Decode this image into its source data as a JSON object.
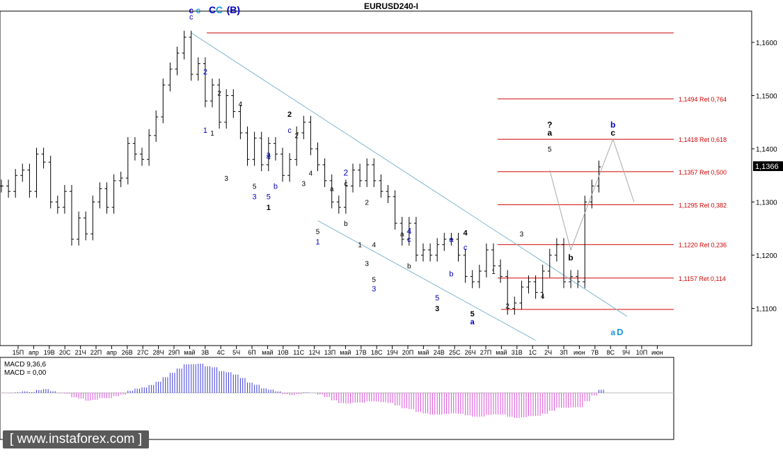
{
  "chart_data": {
    "type": "candlestick",
    "title": "EURUSD240-I",
    "current_price": "1,1366",
    "price_ticks": [
      "1,1600",
      "1,1500",
      "1,1400",
      "1,1300",
      "1,1200",
      "1,1100"
    ],
    "time_ticks": [
      "15П",
      "апр",
      "19В",
      "20С",
      "21Ч",
      "22П",
      "апр",
      "26В",
      "27С",
      "28Ч",
      "29П",
      "май",
      "3В",
      "4С",
      "5Ч",
      "6П",
      "май",
      "10В",
      "11С",
      "12Ч",
      "13П",
      "май",
      "17В",
      "18С",
      "19Ч",
      "20П",
      "май",
      "24В",
      "25С",
      "26Ч",
      "27П",
      "май",
      "31В",
      "1С",
      "2Ч",
      "3П",
      "июн",
      "7В",
      "8С",
      "9Ч",
      "10П",
      "июн"
    ],
    "fib_levels": [
      {
        "price": 1.1618,
        "label": ""
      },
      {
        "price": 1.1494,
        "label": "1,1494 Ret 0,764"
      },
      {
        "price": 1.1418,
        "label": "1,1418 Ret 0,618"
      },
      {
        "price": 1.1357,
        "label": "1,1357 Ret 0,500"
      },
      {
        "price": 1.1295,
        "label": "1,1295 Ret 0,382"
      },
      {
        "price": 1.122,
        "label": "1,1220 Ret 0,236"
      },
      {
        "price": 1.1157,
        "label": "1,1157 Ret 0,114"
      },
      {
        "price": 1.1098,
        "label": ""
      }
    ],
    "price_path": [
      1.133,
      1.132,
      1.135,
      1.136,
      1.132,
      1.139,
      1.1375,
      1.13,
      1.129,
      1.132,
      1.123,
      1.127,
      1.124,
      1.13,
      1.1325,
      1.129,
      1.134,
      1.1345,
      1.141,
      1.139,
      1.138,
      1.1425,
      1.146,
      1.152,
      1.155,
      1.158,
      1.161,
      1.154,
      1.156,
      1.149,
      1.152,
      1.145,
      1.15,
      1.147,
      1.143,
      1.138,
      1.142,
      1.137,
      1.141,
      1.139,
      1.135,
      1.138,
      1.143,
      1.145,
      1.14,
      1.137,
      1.134,
      1.13,
      1.129,
      1.133,
      1.136,
      1.134,
      1.137,
      1.134,
      1.132,
      1.131,
      1.126,
      1.123,
      1.126,
      1.12,
      1.121,
      1.12,
      1.122,
      1.123,
      1.123,
      1.12,
      1.116,
      1.115,
      1.117,
      1.121,
      1.118,
      1.116,
      1.11,
      1.111,
      1.114,
      1.115,
      1.113,
      1.117,
      1.12,
      1.122,
      1.115,
      1.116,
      1.115,
      1.13,
      1.133,
      1.1366
    ],
    "annotations": [
      {
        "text": "c",
        "color": "#0000c0",
        "price": 1.1643,
        "bar": 27,
        "size": 11,
        "bold": false
      },
      {
        "text": "c",
        "color": "#0000c0",
        "price": 1.1655,
        "bar": 27,
        "size": 12,
        "bold": true
      },
      {
        "text": "c",
        "color": "#1a9ad6",
        "price": 1.1655,
        "bar": 28,
        "size": 12,
        "bold": true
      },
      {
        "text": "C",
        "color": "#0000c0",
        "price": 1.1655,
        "bar": 30,
        "size": 14,
        "bold": true
      },
      {
        "text": "C",
        "color": "#1a9ad6",
        "price": 1.1655,
        "bar": 31,
        "size": 14,
        "bold": true
      },
      {
        "text": "(B)",
        "color": "#0000c0",
        "price": 1.1655,
        "bar": 33,
        "size": 14,
        "bold": true
      },
      {
        "text": "2",
        "color": "#0000c0",
        "price": 1.154,
        "bar": 29,
        "size": 11,
        "bold": false
      },
      {
        "text": "2",
        "color": "#000000",
        "price": 1.15,
        "bar": 31,
        "size": 10,
        "bold": false
      },
      {
        "text": "1",
        "color": "#0000c0",
        "price": 1.143,
        "bar": 29,
        "size": 11,
        "bold": false
      },
      {
        "text": "1",
        "color": "#000000",
        "price": 1.1425,
        "bar": 30,
        "size": 10,
        "bold": false
      },
      {
        "text": "4",
        "color": "#000000",
        "price": 1.148,
        "bar": 34,
        "size": 10,
        "bold": false
      },
      {
        "text": "3",
        "color": "#000000",
        "price": 1.134,
        "bar": 32,
        "size": 10,
        "bold": false
      },
      {
        "text": "4",
        "color": "#0000c0",
        "price": 1.138,
        "bar": 38,
        "size": 11,
        "bold": false
      },
      {
        "text": "5",
        "color": "#000000",
        "price": 1.1325,
        "bar": 36,
        "size": 10,
        "bold": false
      },
      {
        "text": "3",
        "color": "#0000c0",
        "price": 1.1305,
        "bar": 36,
        "size": 11,
        "bold": false
      },
      {
        "text": "5",
        "color": "#0000c0",
        "price": 1.1305,
        "bar": 38,
        "size": 11,
        "bold": false
      },
      {
        "text": "1",
        "color": "#000000",
        "price": 1.1285,
        "bar": 38,
        "size": 11,
        "bold": true
      },
      {
        "text": "2",
        "color": "#000000",
        "price": 1.146,
        "bar": 41,
        "size": 11,
        "bold": true
      },
      {
        "text": "c",
        "color": "#0000c0",
        "price": 1.143,
        "bar": 41,
        "size": 11,
        "bold": false
      },
      {
        "text": "2",
        "color": "#000000",
        "price": 1.142,
        "bar": 42,
        "size": 10,
        "bold": false
      },
      {
        "text": "a",
        "color": "#0000c0",
        "price": 1.1385,
        "bar": 38,
        "size": 11,
        "bold": false
      },
      {
        "text": "b",
        "color": "#0000c0",
        "price": 1.1325,
        "bar": 39,
        "size": 11,
        "bold": false
      },
      {
        "text": "3",
        "color": "#000000",
        "price": 1.133,
        "bar": 43,
        "size": 10,
        "bold": false
      },
      {
        "text": "4",
        "color": "#000000",
        "price": 1.135,
        "bar": 44,
        "size": 10,
        "bold": false
      },
      {
        "text": "5",
        "color": "#000000",
        "price": 1.124,
        "bar": 45,
        "size": 10,
        "bold": false
      },
      {
        "text": "1",
        "color": "#0000c0",
        "price": 1.122,
        "bar": 45,
        "size": 11,
        "bold": false
      },
      {
        "text": "2",
        "color": "#0000c0",
        "price": 1.135,
        "bar": 49,
        "size": 12,
        "bold": false
      },
      {
        "text": "c",
        "color": "#000000",
        "price": 1.133,
        "bar": 49,
        "size": 10,
        "bold": false
      },
      {
        "text": "a",
        "color": "#000000",
        "price": 1.132,
        "bar": 47,
        "size": 10,
        "bold": false
      },
      {
        "text": "b",
        "color": "#000000",
        "price": 1.1255,
        "bar": 49,
        "size": 10,
        "bold": false
      },
      {
        "text": "2",
        "color": "#000000",
        "price": 1.1295,
        "bar": 52,
        "size": 10,
        "bold": false
      },
      {
        "text": "1",
        "color": "#000000",
        "price": 1.1215,
        "bar": 51,
        "size": 10,
        "bold": false
      },
      {
        "text": "4",
        "color": "#000000",
        "price": 1.1215,
        "bar": 53,
        "size": 10,
        "bold": false
      },
      {
        "text": "3",
        "color": "#000000",
        "price": 1.118,
        "bar": 52,
        "size": 10,
        "bold": false
      },
      {
        "text": "5",
        "color": "#000000",
        "price": 1.115,
        "bar": 53,
        "size": 10,
        "bold": false
      },
      {
        "text": "3",
        "color": "#0000c0",
        "price": 1.1132,
        "bar": 53,
        "size": 11,
        "bold": false
      },
      {
        "text": "4",
        "color": "#0000c0",
        "price": 1.124,
        "bar": 58,
        "size": 12,
        "bold": false
      },
      {
        "text": "c",
        "color": "#0000c0",
        "price": 1.1225,
        "bar": 58,
        "size": 11,
        "bold": false
      },
      {
        "text": "a",
        "color": "#000000",
        "price": 1.1235,
        "bar": 57,
        "size": 10,
        "bold": false
      },
      {
        "text": "b",
        "color": "#000000",
        "price": 1.1175,
        "bar": 58,
        "size": 10,
        "bold": false
      },
      {
        "text": "5",
        "color": "#0000c0",
        "price": 1.1115,
        "bar": 62,
        "size": 11,
        "bold": false
      },
      {
        "text": "3",
        "color": "#000000",
        "price": 1.1095,
        "bar": 62,
        "size": 11,
        "bold": true
      },
      {
        "text": "4",
        "color": "#000000",
        "price": 1.1237,
        "bar": 66,
        "size": 11,
        "bold": true
      },
      {
        "text": "a",
        "color": "#0000c0",
        "price": 1.1225,
        "bar": 64,
        "size": 11,
        "bold": false
      },
      {
        "text": "c",
        "color": "#0000c0",
        "price": 1.121,
        "bar": 66,
        "size": 11,
        "bold": false
      },
      {
        "text": "b",
        "color": "#0000c0",
        "price": 1.116,
        "bar": 64,
        "size": 11,
        "bold": false
      },
      {
        "text": "5",
        "color": "#000000",
        "price": 1.1085,
        "bar": 67,
        "size": 11,
        "bold": true
      },
      {
        "text": "a",
        "color": "#0000c0",
        "price": 1.107,
        "bar": 67,
        "size": 11,
        "bold": true
      },
      {
        "text": "1",
        "color": "#000000",
        "price": 1.1165,
        "bar": 70,
        "size": 10,
        "bold": false
      },
      {
        "text": "2",
        "color": "#000000",
        "price": 1.11,
        "bar": 72,
        "size": 10,
        "bold": false
      },
      {
        "text": "3",
        "color": "#000000",
        "price": 1.1235,
        "bar": 74,
        "size": 10,
        "bold": false
      },
      {
        "text": "4",
        "color": "#000000",
        "price": 1.1118,
        "bar": 77,
        "size": 10,
        "bold": false
      },
      {
        "text": "?",
        "color": "#000000",
        "price": 1.144,
        "bar": 78,
        "size": 12,
        "bold": true
      },
      {
        "text": "a",
        "color": "#000000",
        "price": 1.1425,
        "bar": 78,
        "size": 12,
        "bold": true
      },
      {
        "text": "5",
        "color": "#000000",
        "price": 1.1395,
        "bar": 78,
        "size": 10,
        "bold": false
      },
      {
        "text": "b",
        "color": "#000000",
        "price": 1.119,
        "bar": 81,
        "size": 12,
        "bold": true
      },
      {
        "text": "b",
        "color": "#0000c0",
        "price": 1.144,
        "bar": 87,
        "size": 12,
        "bold": true
      },
      {
        "text": "c",
        "color": "#000000",
        "price": 1.1425,
        "bar": 87,
        "size": 12,
        "bold": true
      },
      {
        "text": "a",
        "color": "#1a9ad6",
        "price": 1.105,
        "bar": 87,
        "size": 12,
        "bold": true
      },
      {
        "text": "D",
        "color": "#1a9ad6",
        "price": 1.105,
        "bar": 88,
        "size": 13,
        "bold": true
      }
    ],
    "forecast_path": [
      {
        "bar": 78,
        "price": 1.136
      },
      {
        "bar": 81,
        "price": 1.121
      },
      {
        "bar": 87,
        "price": 1.1418
      },
      {
        "bar": 90,
        "price": 1.13
      }
    ],
    "channel_lines": [
      [
        {
          "bar": 27,
          "price": 1.1618
        },
        {
          "bar": 89,
          "price": 1.1085
        }
      ],
      [
        {
          "bar": 45,
          "price": 1.1265
        },
        {
          "bar": 76,
          "price": 1.104
        }
      ]
    ],
    "macd": {
      "label": "MACD 9,36,6",
      "value_label": "MACD = 0,00",
      "colors": {
        "positive": "#3a3ad8",
        "negative": "#d84fd8"
      }
    },
    "watermark": "[ www.instaforex.com ]"
  }
}
